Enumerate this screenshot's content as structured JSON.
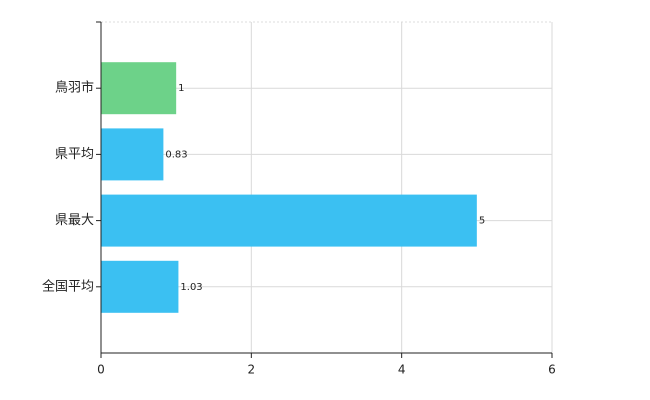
{
  "chart_data": {
    "type": "bar",
    "orientation": "horizontal",
    "categories": [
      "鳥羽市",
      "県平均",
      "県最大",
      "全国平均"
    ],
    "values": [
      1,
      0.83,
      5,
      1.03
    ],
    "colors": [
      "#6dd289",
      "#3bc0f2",
      "#3bc0f2",
      "#3bc0f2"
    ],
    "xlim": [
      0,
      6
    ],
    "xticks": [
      0,
      2,
      4,
      6
    ],
    "grid": true
  }
}
